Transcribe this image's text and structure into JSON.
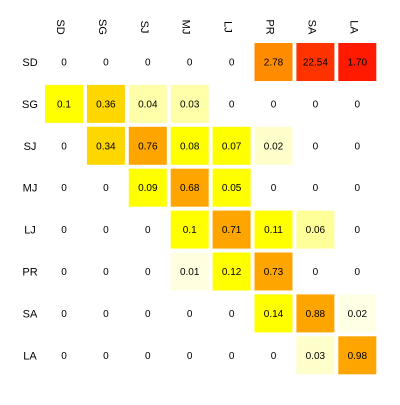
{
  "chart_data": {
    "type": "heatmap",
    "title": "",
    "xlabel": "",
    "ylabel": "",
    "x": [
      "SD",
      "SG",
      "SJ",
      "MJ",
      "LJ",
      "PR",
      "SA",
      "LA"
    ],
    "y": [
      "SD",
      "SG",
      "SJ",
      "MJ",
      "LJ",
      "PR",
      "SA",
      "LA"
    ],
    "values": [
      [
        0,
        0,
        0,
        0,
        0,
        2.78,
        22.54,
        1.7
      ],
      [
        0.1,
        0.36,
        0.04,
        0.03,
        0,
        0,
        0,
        0
      ],
      [
        0,
        0.34,
        0.76,
        0.08,
        0.07,
        0.02,
        0,
        0
      ],
      [
        0,
        0,
        0.09,
        0.68,
        0.05,
        0,
        0,
        0
      ],
      [
        0,
        0,
        0,
        0.1,
        0.71,
        0.11,
        0.06,
        0
      ],
      [
        0,
        0,
        0,
        0.01,
        0.12,
        0.73,
        0,
        0
      ],
      [
        0,
        0,
        0,
        0,
        0,
        0.14,
        0.88,
        0.02
      ],
      [
        0,
        0,
        0,
        0,
        0,
        0,
        0.03,
        0.98
      ]
    ],
    "value_labels": [
      [
        "0",
        "0",
        "0",
        "0",
        "0",
        "2.78",
        "22.54",
        "1.70"
      ],
      [
        "0.1",
        "0.36",
        "0.04",
        "0.03",
        "0",
        "0",
        "0",
        "0"
      ],
      [
        "0",
        "0.34",
        "0.76",
        "0.08",
        "0.07",
        "0.02",
        "0",
        "0"
      ],
      [
        "0",
        "0",
        "0.09",
        "0.68",
        "0.05",
        "0",
        "0",
        "0"
      ],
      [
        "0",
        "0",
        "0",
        "0.1",
        "0.71",
        "0.11",
        "0.06",
        "0"
      ],
      [
        "0",
        "0",
        "0",
        "0.01",
        "0.12",
        "0.73",
        "0",
        "0"
      ],
      [
        "0",
        "0",
        "0",
        "0",
        "0",
        "0.14",
        "0.88",
        "0.02"
      ],
      [
        "0",
        "0",
        "0",
        "0",
        "0",
        "0",
        "0.03",
        "0.98"
      ]
    ],
    "cell_colors": [
      [
        null,
        null,
        null,
        null,
        null,
        "#FF8C00",
        "#FF3300",
        "#FF1A00"
      ],
      [
        "#FFFF00",
        "#FFD700",
        "#FFFFAA",
        "#FFFFAA",
        null,
        null,
        null,
        null
      ],
      [
        null,
        "#FFD700",
        "#FFA500",
        "#FFFF00",
        "#FFFF00",
        "#FFFFCC",
        null,
        null
      ],
      [
        null,
        null,
        "#FFFF00",
        "#FFA500",
        "#FFFF00",
        null,
        null,
        null
      ],
      [
        null,
        null,
        null,
        "#FFFF00",
        "#FFA500",
        "#FFFF00",
        "#FFFF99",
        null
      ],
      [
        null,
        null,
        null,
        "#FFFFE0",
        "#FFFF00",
        "#FFA500",
        null,
        null
      ],
      [
        null,
        null,
        null,
        null,
        null,
        "#FFFF00",
        "#FFA500",
        "#FFFFE5"
      ],
      [
        null,
        null,
        null,
        null,
        null,
        null,
        "#FFFFCC",
        "#FFA500"
      ]
    ],
    "grid": false,
    "legend": "none",
    "x_label_rotation": "vertical",
    "background": "#ffffff"
  }
}
